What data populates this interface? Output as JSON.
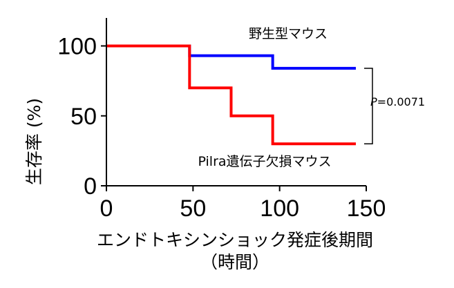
{
  "chart_data": {
    "type": "line",
    "step": true,
    "xlabel": "エンドトキシンショック発症後期間",
    "xlabel_sub": "（時間）",
    "ylabel": "生存率 (%)",
    "xlim": [
      0,
      150
    ],
    "ylim": [
      0,
      120
    ],
    "x_ticks": [
      0,
      50,
      100,
      150
    ],
    "y_ticks": [
      0,
      50,
      100
    ],
    "grid": false,
    "series": [
      {
        "name": "野生型マウス",
        "color": "#0000ff",
        "points": [
          [
            0,
            100
          ],
          [
            48,
            100
          ],
          [
            48,
            93
          ],
          [
            96,
            93
          ],
          [
            96,
            84
          ],
          [
            144,
            84
          ]
        ]
      },
      {
        "name": "Pilra遺伝子欠損マウス",
        "color": "#ff0000",
        "points": [
          [
            0,
            100
          ],
          [
            48,
            100
          ],
          [
            48,
            70
          ],
          [
            72,
            70
          ],
          [
            72,
            50
          ],
          [
            96,
            50
          ],
          [
            96,
            30
          ],
          [
            144,
            30
          ]
        ]
      }
    ],
    "annotation": {
      "p_symbol": "P",
      "p_value": "=0.0071"
    }
  }
}
